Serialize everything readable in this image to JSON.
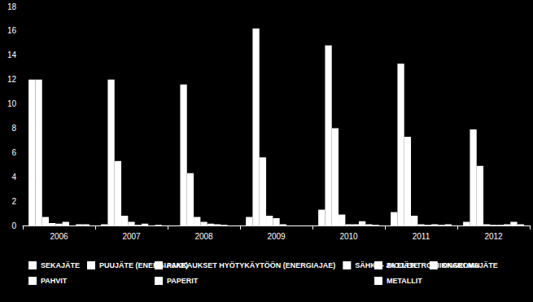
{
  "chart_data": {
    "type": "bar",
    "categories": [
      "2006",
      "2007",
      "2008",
      "2009",
      "2010",
      "2011",
      "2012"
    ],
    "series": [
      {
        "name": "SEKAJÄTE",
        "color": "#ffffff",
        "values": [
          12,
          0.1,
          0,
          0.7,
          1.3,
          1.1,
          0.3
        ]
      },
      {
        "name": "PAKKAUKSET HYÖTYKÄYTÖÖN (ENERGIAJAE)",
        "color": "#ffffff",
        "values": [
          12,
          12,
          11.6,
          16.2,
          14.8,
          13.3,
          7.9
        ]
      },
      {
        "name": "BIOJÄTE",
        "color": "#ffffff",
        "values": [
          0.7,
          5.3,
          4.3,
          5.6,
          8.0,
          7.3,
          4.9
        ]
      },
      {
        "name": "PAHVIT",
        "color": "#ffffff",
        "values": [
          0.2,
          0.8,
          0.7,
          0.8,
          0.9,
          0.8,
          0.1
        ]
      },
      {
        "name": "PAPERIT",
        "color": "#ffffff",
        "values": [
          0.15,
          0.3,
          0.3,
          0.6,
          0.1,
          0.1,
          0.05
        ]
      },
      {
        "name": "METALLIT",
        "color": "#ffffff",
        "values": [
          0.3,
          0.05,
          0.15,
          0.1,
          0.1,
          0.05,
          0.05
        ]
      },
      {
        "name": "PUUJÄTE (ENERGIAJAE)",
        "color": "#ffffff",
        "values": [
          0,
          0.15,
          0.1,
          0,
          0.35,
          0.1,
          0.1
        ]
      },
      {
        "name": "SÄHKÖ- JA ELEKTRONIIKKAROMU",
        "color": "#ffffff",
        "values": [
          0.1,
          0,
          0.05,
          0,
          0.1,
          0.05,
          0.3
        ]
      },
      {
        "name": "ONGELMAJÄTE",
        "color": "#ffffff",
        "values": [
          0.1,
          0.05,
          0,
          0,
          0.05,
          0.1,
          0.1
        ]
      }
    ],
    "ylim": [
      0,
      18
    ],
    "yticks": [
      0,
      2,
      4,
      6,
      8,
      10,
      12,
      14,
      16,
      18
    ],
    "grid": false,
    "legend": "bottom"
  }
}
